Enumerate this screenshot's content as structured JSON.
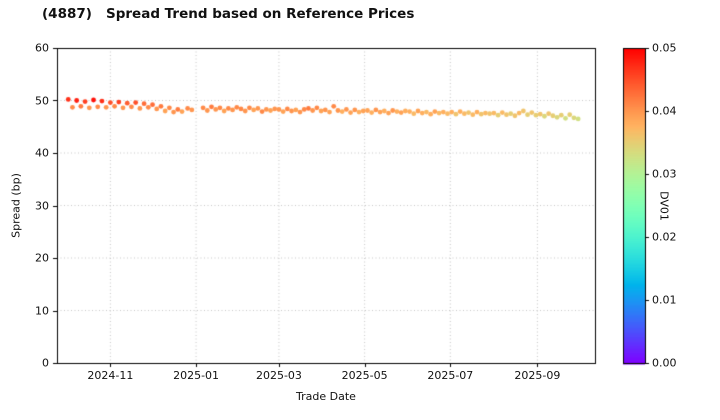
{
  "title": "(4887)   Spread Trend based on Reference Prices",
  "axes": {
    "ylabel": "Spread (bp)",
    "xlabel": "Trade Date",
    "colorbar_label": "DV01"
  },
  "chart_data": {
    "type": "scatter",
    "title": "(4887)   Spread Trend based on Reference Prices",
    "xlabel": "Trade Date",
    "ylabel": "Spread (bp)",
    "ylim": [
      0,
      60
    ],
    "yticks": [
      0,
      10,
      20,
      30,
      40,
      50,
      60
    ],
    "xlim": [
      "2024-09-24",
      "2025-10-12"
    ],
    "xticks": [
      "2024-11-01",
      "2025-01-01",
      "2025-03-01",
      "2025-05-01",
      "2025-07-01",
      "2025-09-01"
    ],
    "xtick_labels": [
      "2024-11",
      "2025-01",
      "2025-03",
      "2025-05",
      "2025-07",
      "2025-09"
    ],
    "grid": true,
    "legend": "none",
    "colormap": "rainbow",
    "colorbar": {
      "label": "DV01",
      "min": 0.0,
      "max": 0.05,
      "ticks": [
        0.0,
        0.01,
        0.02,
        0.03,
        0.04,
        0.05
      ],
      "tick_labels": [
        "0.00",
        "0.01",
        "0.02",
        "0.03",
        "0.04",
        "0.05"
      ]
    },
    "points": {
      "dates": [
        "2024-10-02",
        "2024-10-05",
        "2024-10-08",
        "2024-10-11",
        "2024-10-14",
        "2024-10-17",
        "2024-10-20",
        "2024-10-23",
        "2024-10-26",
        "2024-10-29",
        "2024-11-01",
        "2024-11-04",
        "2024-11-07",
        "2024-11-10",
        "2024-11-13",
        "2024-11-16",
        "2024-11-19",
        "2024-11-22",
        "2024-11-25",
        "2024-11-28",
        "2024-12-01",
        "2024-12-04",
        "2024-12-07",
        "2024-12-10",
        "2024-12-13",
        "2024-12-16",
        "2024-12-19",
        "2024-12-22",
        "2024-12-26",
        "2024-12-29",
        "2025-01-06",
        "2025-01-09",
        "2025-01-12",
        "2025-01-15",
        "2025-01-18",
        "2025-01-21",
        "2025-01-24",
        "2025-01-27",
        "2025-01-30",
        "2025-02-02",
        "2025-02-05",
        "2025-02-08",
        "2025-02-11",
        "2025-02-14",
        "2025-02-17",
        "2025-02-20",
        "2025-02-23",
        "2025-02-26",
        "2025-03-01",
        "2025-03-04",
        "2025-03-07",
        "2025-03-10",
        "2025-03-13",
        "2025-03-16",
        "2025-03-19",
        "2025-03-22",
        "2025-03-25",
        "2025-03-28",
        "2025-03-31",
        "2025-04-03",
        "2025-04-06",
        "2025-04-09",
        "2025-04-12",
        "2025-04-15",
        "2025-04-18",
        "2025-04-21",
        "2025-04-24",
        "2025-04-27",
        "2025-04-30",
        "2025-05-03",
        "2025-05-06",
        "2025-05-09",
        "2025-05-12",
        "2025-05-15",
        "2025-05-18",
        "2025-05-21",
        "2025-05-24",
        "2025-05-27",
        "2025-05-30",
        "2025-06-02",
        "2025-06-05",
        "2025-06-08",
        "2025-06-11",
        "2025-06-14",
        "2025-06-17",
        "2025-06-20",
        "2025-06-23",
        "2025-06-26",
        "2025-06-29",
        "2025-07-02",
        "2025-07-05",
        "2025-07-08",
        "2025-07-11",
        "2025-07-14",
        "2025-07-17",
        "2025-07-20",
        "2025-07-23",
        "2025-07-26",
        "2025-07-29",
        "2025-08-01",
        "2025-08-04",
        "2025-08-07",
        "2025-08-10",
        "2025-08-13",
        "2025-08-16",
        "2025-08-19",
        "2025-08-22",
        "2025-08-25",
        "2025-08-28",
        "2025-08-31",
        "2025-09-03",
        "2025-09-06",
        "2025-09-09",
        "2025-09-12",
        "2025-09-15",
        "2025-09-18",
        "2025-09-21",
        "2025-09-24",
        "2025-09-27",
        "2025-09-30"
      ],
      "spread_bp": [
        50.2,
        48.7,
        50.0,
        48.9,
        49.8,
        48.6,
        50.1,
        48.8,
        49.9,
        48.7,
        49.6,
        48.9,
        49.7,
        48.6,
        49.5,
        48.8,
        49.6,
        48.5,
        49.4,
        48.7,
        49.2,
        48.4,
        48.9,
        48.0,
        48.6,
        47.8,
        48.3,
        47.9,
        48.5,
        48.2,
        48.6,
        48.1,
        48.8,
        48.3,
        48.6,
        48.0,
        48.5,
        48.2,
        48.7,
        48.4,
        48.0,
        48.6,
        48.2,
        48.5,
        47.9,
        48.3,
        48.1,
        48.4,
        48.3,
        47.9,
        48.4,
        48.0,
        48.2,
        47.8,
        48.3,
        48.5,
        48.1,
        48.6,
        48.0,
        48.2,
        47.8,
        48.9,
        48.1,
        47.9,
        48.3,
        47.7,
        48.2,
        47.8,
        48.0,
        48.1,
        47.7,
        48.2,
        47.8,
        48.0,
        47.6,
        48.1,
        47.9,
        47.7,
        48.0,
        47.9,
        47.5,
        48.0,
        47.6,
        47.8,
        47.4,
        47.9,
        47.6,
        47.8,
        47.5,
        47.8,
        47.4,
        47.9,
        47.5,
        47.7,
        47.3,
        47.8,
        47.4,
        47.6,
        47.5,
        47.6,
        47.2,
        47.7,
        47.3,
        47.5,
        47.1,
        47.6,
        48.0,
        47.3,
        47.7,
        47.2,
        47.4,
        47.0,
        47.5,
        47.1,
        46.8,
        47.2,
        46.6,
        47.3,
        46.7,
        46.5
      ],
      "dv01": [
        0.047,
        0.041,
        0.048,
        0.042,
        0.046,
        0.04,
        0.049,
        0.041,
        0.047,
        0.04,
        0.045,
        0.041,
        0.046,
        0.04,
        0.044,
        0.041,
        0.045,
        0.04,
        0.043,
        0.041,
        0.043,
        0.04,
        0.042,
        0.039,
        0.041,
        0.04,
        0.042,
        0.039,
        0.041,
        0.04,
        0.041,
        0.04,
        0.042,
        0.04,
        0.041,
        0.039,
        0.041,
        0.04,
        0.041,
        0.041,
        0.04,
        0.041,
        0.039,
        0.04,
        0.041,
        0.04,
        0.039,
        0.04,
        0.04,
        0.039,
        0.041,
        0.04,
        0.039,
        0.04,
        0.041,
        0.042,
        0.04,
        0.041,
        0.039,
        0.04,
        0.039,
        0.041,
        0.04,
        0.038,
        0.04,
        0.039,
        0.04,
        0.038,
        0.039,
        0.039,
        0.038,
        0.04,
        0.039,
        0.038,
        0.039,
        0.04,
        0.038,
        0.039,
        0.038,
        0.038,
        0.037,
        0.039,
        0.038,
        0.037,
        0.038,
        0.039,
        0.037,
        0.038,
        0.037,
        0.038,
        0.036,
        0.038,
        0.037,
        0.036,
        0.037,
        0.038,
        0.036,
        0.037,
        0.036,
        0.037,
        0.035,
        0.037,
        0.036,
        0.035,
        0.036,
        0.037,
        0.036,
        0.035,
        0.036,
        0.035,
        0.036,
        0.034,
        0.036,
        0.035,
        0.034,
        0.035,
        0.033,
        0.035,
        0.034,
        0.033
      ]
    }
  }
}
